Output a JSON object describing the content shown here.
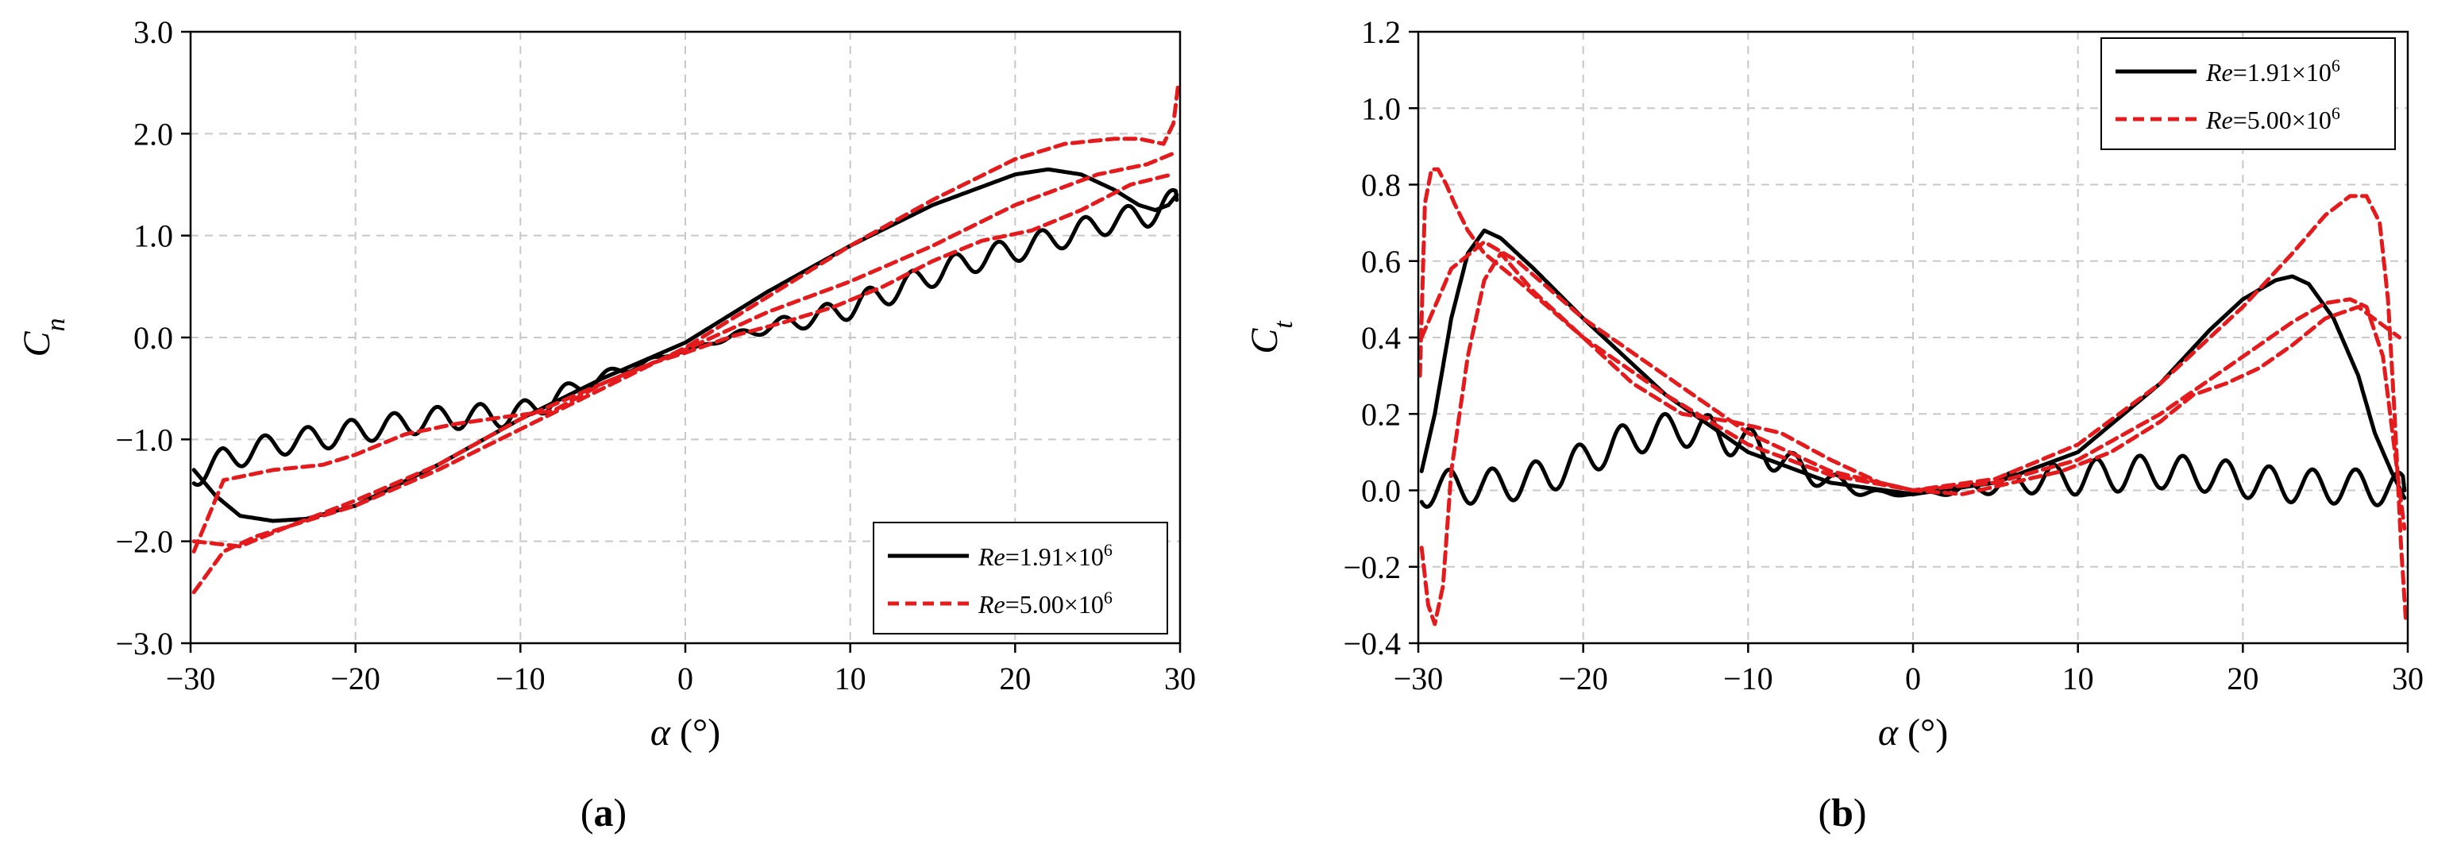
{
  "figure": {
    "panels": [
      {
        "sublabel": "a"
      },
      {
        "sublabel": "b"
      }
    ]
  },
  "colors": {
    "re_low": "#000000",
    "re_high": "#e41a1c",
    "grid": "#c8c8c8"
  },
  "chart_data": [
    {
      "type": "line",
      "panel": "a",
      "title": "",
      "xlabel": "α (°)",
      "xlabel_symbol": "α",
      "xlabel_unit": "(°)",
      "ylabel": "C_n",
      "ylabel_main": "C",
      "ylabel_sub": "n",
      "xlim": [
        -30,
        30
      ],
      "ylim": [
        -3.0,
        3.0
      ],
      "xticks": [
        -30,
        -20,
        -10,
        0,
        10,
        20,
        30
      ],
      "xtick_labels": [
        "−30",
        "−20",
        "−10",
        "0",
        "10",
        "20",
        "30"
      ],
      "yticks": [
        -3.0,
        -2.0,
        -1.0,
        0.0,
        1.0,
        2.0,
        3.0
      ],
      "ytick_labels": [
        "−3.0",
        "−2.0",
        "−1.0",
        "0.0",
        "1.0",
        "2.0",
        "3.0"
      ],
      "grid": true,
      "legend_position": "bottom-right",
      "series": [
        {
          "name": "Re=1.91×10^6",
          "legend": {
            "re": "Re",
            "mantissa": "=1.91×10",
            "exp": "6"
          },
          "style": "solid",
          "color": "#000000",
          "segments": [
            {
              "part": "upper",
              "oscillation": 0.0,
              "x": [
                -29.8,
                -28.5,
                -27,
                -25,
                -23,
                -20,
                -15,
                -10,
                -5,
                0,
                5,
                10,
                15,
                20,
                22,
                24,
                26,
                27.5,
                28.5,
                29.3,
                29.8
              ],
              "y": [
                -1.3,
                -1.55,
                -1.75,
                -1.8,
                -1.78,
                -1.65,
                -1.25,
                -0.8,
                -0.4,
                -0.05,
                0.45,
                0.9,
                1.3,
                1.6,
                1.65,
                1.6,
                1.45,
                1.3,
                1.25,
                1.3,
                1.4
              ]
            },
            {
              "part": "lower",
              "oscillation": 0.12,
              "x": [
                -29.8,
                -28,
                -26,
                -24,
                -22,
                -20,
                -18,
                -16,
                -14,
                -12,
                -10,
                -8,
                -6,
                -4,
                -2,
                0,
                2,
                5,
                8,
                10,
                12,
                14,
                16,
                18,
                20,
                22,
                24,
                26,
                28,
                29.8
              ],
              "y": [
                -1.35,
                -1.2,
                -1.1,
                -1.02,
                -0.98,
                -0.92,
                -0.87,
                -0.82,
                -0.78,
                -0.77,
                -0.75,
                -0.6,
                -0.45,
                -0.33,
                -0.22,
                -0.13,
                -0.03,
                0.1,
                0.2,
                0.3,
                0.42,
                0.55,
                0.68,
                0.78,
                0.86,
                0.95,
                1.05,
                1.15,
                1.2,
                1.35
              ]
            }
          ]
        },
        {
          "name": "Re=5.00×10^6",
          "legend": {
            "re": "Re",
            "mantissa": "=5.00×10",
            "exp": "6"
          },
          "style": "dashed",
          "color": "#e41a1c",
          "segments": [
            {
              "part": "upper",
              "oscillation": 0.0,
              "x": [
                -29.8,
                -28,
                -26,
                -24,
                -20,
                -15,
                -10,
                -5,
                0,
                5,
                10,
                15,
                20,
                23,
                26,
                27.5,
                29,
                29.6,
                29.9
              ],
              "y": [
                -2.5,
                -2.1,
                -1.95,
                -1.85,
                -1.65,
                -1.3,
                -0.9,
                -0.5,
                -0.1,
                0.4,
                0.9,
                1.35,
                1.75,
                1.9,
                1.95,
                1.95,
                1.9,
                2.1,
                2.5
              ]
            },
            {
              "part": "middle",
              "oscillation": 0.0,
              "x": [
                -29.8,
                -27,
                -24,
                -20,
                -15,
                -10,
                -5,
                0,
                5,
                10,
                15,
                20,
                25,
                28,
                29.5
              ],
              "y": [
                -2.0,
                -2.05,
                -1.85,
                -1.6,
                -1.25,
                -0.8,
                -0.45,
                -0.12,
                0.25,
                0.55,
                0.9,
                1.3,
                1.6,
                1.7,
                1.8
              ]
            },
            {
              "part": "lower",
              "oscillation": 0.0,
              "x": [
                -29.8,
                -28,
                -25,
                -22,
                -20,
                -17,
                -14,
                -11,
                -8,
                -5,
                -2,
                0,
                3,
                6,
                9,
                12,
                15,
                18,
                21,
                24,
                27,
                29.5
              ],
              "y": [
                -2.1,
                -1.4,
                -1.3,
                -1.25,
                -1.15,
                -0.95,
                -0.85,
                -0.78,
                -0.72,
                -0.45,
                -0.25,
                -0.15,
                0.02,
                0.15,
                0.3,
                0.5,
                0.75,
                0.95,
                1.05,
                1.25,
                1.5,
                1.6
              ]
            }
          ]
        }
      ]
    },
    {
      "type": "line",
      "panel": "b",
      "title": "",
      "xlabel": "α (°)",
      "xlabel_symbol": "α",
      "xlabel_unit": "(°)",
      "ylabel": "C_t",
      "ylabel_main": "C",
      "ylabel_sub": "t",
      "xlim": [
        -30,
        30
      ],
      "ylim": [
        -0.4,
        1.2
      ],
      "xticks": [
        -30,
        -20,
        -10,
        0,
        10,
        20,
        30
      ],
      "xtick_labels": [
        "−30",
        "−20",
        "−10",
        "0",
        "10",
        "20",
        "30"
      ],
      "yticks": [
        -0.4,
        -0.2,
        0.0,
        0.2,
        0.4,
        0.6,
        0.8,
        1.0,
        1.2
      ],
      "ytick_labels": [
        "−0.4",
        "−0.2",
        "0.0",
        "0.2",
        "0.4",
        "0.6",
        "0.8",
        "1.0",
        "1.2"
      ],
      "grid": true,
      "legend_position": "top-right",
      "series": [
        {
          "name": "Re=1.91×10^6",
          "legend": {
            "re": "Re",
            "mantissa": "=1.91×10",
            "exp": "6"
          },
          "style": "solid",
          "color": "#000000",
          "segments": [
            {
              "part": "upper",
              "oscillation": 0.0,
              "x": [
                -29.8,
                -29,
                -28,
                -27,
                -26,
                -25,
                -23,
                -20,
                -15,
                -10,
                -5,
                0,
                5,
                10,
                15,
                18,
                20,
                22,
                23,
                24,
                25.5,
                27,
                28,
                29,
                29.8
              ],
              "y": [
                0.05,
                0.2,
                0.45,
                0.62,
                0.68,
                0.66,
                0.58,
                0.45,
                0.25,
                0.1,
                0.02,
                -0.01,
                0.02,
                0.1,
                0.28,
                0.42,
                0.5,
                0.55,
                0.56,
                0.54,
                0.45,
                0.3,
                0.15,
                0.05,
                -0.02
              ]
            },
            {
              "part": "lower",
              "oscillation": 0.045,
              "x": [
                -29.8,
                -28,
                -26,
                -24,
                -22,
                -20,
                -18,
                -16,
                -14,
                -12,
                -10,
                -8,
                -6,
                -4,
                -2,
                0,
                3,
                6,
                9,
                12,
                15,
                18,
                21,
                24,
                27,
                29.8
              ],
              "y": [
                0.0,
                0.01,
                0.01,
                0.02,
                0.04,
                0.08,
                0.12,
                0.15,
                0.16,
                0.15,
                0.12,
                0.08,
                0.04,
                0.01,
                -0.01,
                -0.01,
                0.0,
                0.02,
                0.03,
                0.04,
                0.05,
                0.04,
                0.02,
                0.01,
                0.01,
                0.0
              ]
            }
          ]
        },
        {
          "name": "Re=5.00×10^6",
          "legend": {
            "re": "Re",
            "mantissa": "=5.00×10",
            "exp": "6"
          },
          "style": "dashed",
          "color": "#e41a1c",
          "segments": [
            {
              "part": "outer",
              "oscillation": 0.0,
              "x": [
                -29.9,
                -29.6,
                -29.2,
                -28.8,
                -28.3,
                -27.8,
                -27,
                -26,
                -24,
                -20,
                -15,
                -10,
                -5,
                0,
                5,
                10,
                15,
                20,
                23,
                25,
                26.5,
                27.5,
                28.3,
                28.8,
                29.2,
                29.6,
                29.9
              ],
              "y": [
                0.3,
                0.75,
                0.84,
                0.84,
                0.8,
                0.75,
                0.68,
                0.62,
                0.55,
                0.4,
                0.25,
                0.12,
                0.04,
                0.0,
                0.03,
                0.12,
                0.28,
                0.48,
                0.62,
                0.72,
                0.77,
                0.77,
                0.7,
                0.5,
                0.2,
                -0.15,
                -0.35
              ]
            },
            {
              "part": "middle",
              "oscillation": 0.0,
              "x": [
                -29.8,
                -28,
                -26,
                -24,
                -20,
                -15,
                -10,
                -5,
                0,
                5,
                10,
                15,
                20,
                23,
                25,
                26.5,
                27.5,
                28.5,
                29.8
              ],
              "y": [
                0.4,
                0.58,
                0.65,
                0.6,
                0.45,
                0.3,
                0.15,
                0.05,
                0.0,
                0.02,
                0.08,
                0.2,
                0.35,
                0.44,
                0.49,
                0.5,
                0.48,
                0.35,
                -0.1
              ]
            },
            {
              "part": "inner",
              "oscillation": 0.0,
              "x": [
                -29.8,
                -29.4,
                -29,
                -28.5,
                -28,
                -27,
                -26,
                -25,
                -23,
                -20,
                -17,
                -14,
                -11,
                -8,
                -5,
                -2,
                0,
                3,
                6,
                9,
                12,
                15,
                17,
                19,
                21,
                23,
                25,
                27,
                29.5
              ],
              "y": [
                -0.15,
                -0.3,
                -0.35,
                -0.25,
                0.05,
                0.35,
                0.55,
                0.62,
                0.52,
                0.4,
                0.28,
                0.2,
                0.18,
                0.15,
                0.08,
                0.02,
                0.0,
                -0.01,
                0.02,
                0.05,
                0.1,
                0.18,
                0.25,
                0.28,
                0.32,
                0.38,
                0.45,
                0.48,
                0.4
              ]
            }
          ]
        }
      ]
    }
  ]
}
